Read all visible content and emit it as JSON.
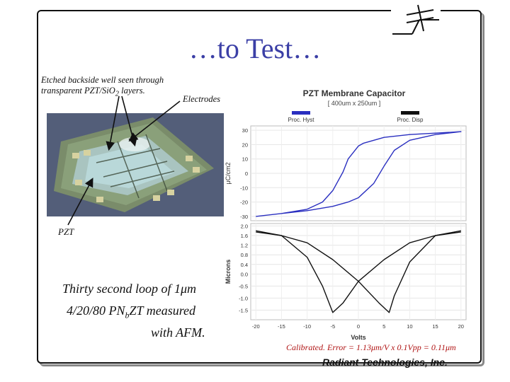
{
  "slide": {
    "title": "…to Test…",
    "notes": {
      "etched_line1": "Etched backside well seen through",
      "etched_line2_a": "transparent PZT/SiO",
      "etched_line2_sub": "2",
      "etched_line2_b": " layers.",
      "electrodes": "Electrodes",
      "pzt": "PZT"
    },
    "description": {
      "line1": "Thirty second loop of 1μm",
      "line2_a": "4/20/80 PN",
      "line2_sub": "b",
      "line2_b": "ZT measured",
      "line3": "with AFM."
    },
    "calibration": "Calibrated.  Error = 1.13μm/V x 0.1Vpp = 0.11μm",
    "company": "Radiant Technologies, Inc."
  },
  "chart_data": {
    "type": "line",
    "title": "PZT Membrane Capacitor",
    "subtitle": "[ 400um x 250um ]",
    "legend": [
      {
        "name": "Proc. Hyst",
        "color": "#2a2fc0"
      },
      {
        "name": "Proc. Disp",
        "color": "#111111"
      }
    ],
    "x_ticks": [
      "-20",
      "-15",
      "-10",
      "-5",
      "0",
      "5",
      "10",
      "15",
      "20"
    ],
    "xlabel": "Volts",
    "xlim": [
      -21,
      21
    ],
    "top_panel": {
      "ylabel": "μC/cm2",
      "ylim": [
        -33,
        33
      ],
      "y_ticks": [
        "30",
        "20",
        "10",
        "0",
        "-10",
        "-20",
        "-30"
      ],
      "series": [
        {
          "name": "Proc. Hyst",
          "color": "#2a2fc0",
          "x": [
            -20,
            -15,
            -10,
            -5,
            -2,
            0,
            3,
            5,
            7,
            10,
            15,
            20,
            15,
            10,
            5,
            3,
            1,
            0,
            -2,
            -3,
            -5,
            -7,
            -10,
            -15,
            -20
          ],
          "y": [
            -30,
            -28,
            -26,
            -23,
            -20,
            -17,
            -7,
            5,
            16,
            23,
            27,
            29,
            28,
            27,
            25,
            23,
            21,
            19,
            10,
            1,
            -12,
            -20,
            -25,
            -28,
            -30
          ]
        }
      ]
    },
    "bottom_panel": {
      "ylabel": "Microns",
      "ylim": [
        -1.9,
        2.1
      ],
      "y_ticks": [
        "2.0",
        "1.6",
        "1.2",
        "0.8",
        "0.4",
        "0.0",
        "-0.5",
        "-1.0",
        "-1.5"
      ],
      "series": [
        {
          "name": "Proc. Disp",
          "color": "#111111",
          "x": [
            -20,
            -15,
            -10,
            -7,
            -5,
            -3,
            0,
            5,
            10,
            15,
            20
          ],
          "y": [
            1.8,
            1.6,
            0.7,
            -0.5,
            -1.6,
            -1.2,
            -0.3,
            0.6,
            1.3,
            1.6,
            1.75
          ]
        },
        {
          "name": "Proc. Disp",
          "color": "#111111",
          "x": [
            20,
            15,
            10,
            7,
            6,
            4,
            0,
            -5,
            -10,
            -15,
            -20
          ],
          "y": [
            1.8,
            1.6,
            0.5,
            -0.9,
            -1.6,
            -1.2,
            -0.3,
            0.6,
            1.3,
            1.6,
            1.75
          ]
        }
      ]
    }
  }
}
